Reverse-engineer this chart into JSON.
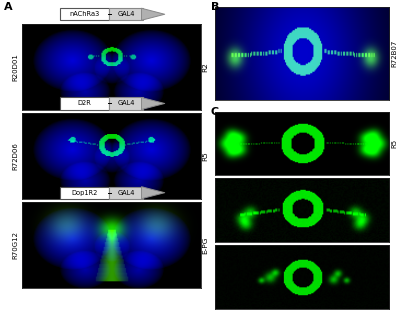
{
  "figure_width": 4.01,
  "figure_height": 3.28,
  "dpi": 100,
  "background_color": "#ffffff",
  "panel_A_label": "A",
  "panel_B_label": "B",
  "panel_C_label": "C",
  "row_labels_left": [
    "R20D01",
    "R72D06",
    "R70G12"
  ],
  "row_labels_right": [
    "R2",
    "R5",
    "E-PG"
  ],
  "gene_labels": [
    "nAChRa3",
    "D2R",
    "Dop1R2"
  ],
  "gal4_label": "GAL4",
  "side_label_B": "R72B07",
  "side_label_C": "R5",
  "panel_label_fontsize": 8,
  "row_label_fontsize": 5.0,
  "gene_label_fontsize": 4.8,
  "annotation_color": "#000000"
}
